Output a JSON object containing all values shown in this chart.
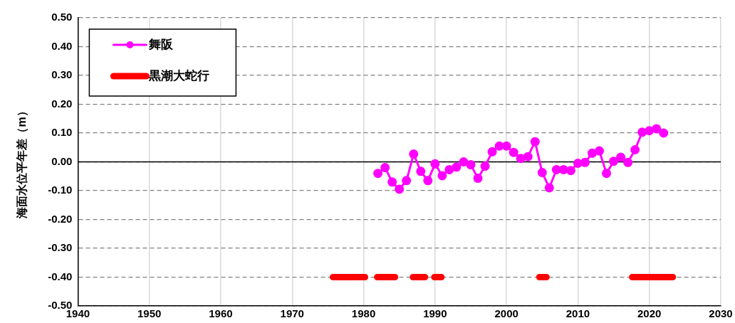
{
  "chart_data": {
    "type": "line",
    "ylabel": "海面水位平年差（m）",
    "xlim": [
      1940,
      2030
    ],
    "xticks": [
      1940,
      1950,
      1960,
      1970,
      1980,
      1990,
      2000,
      2010,
      2020,
      2030
    ],
    "ylim": [
      -0.5,
      0.5
    ],
    "yticks": [
      {
        "value": -0.5,
        "label": "-0.50"
      },
      {
        "value": -0.4,
        "label": "-0.40"
      },
      {
        "value": -0.3,
        "label": "-0.30"
      },
      {
        "value": -0.2,
        "label": "-0.20"
      },
      {
        "value": -0.1,
        "label": "-0.10"
      },
      {
        "value": 0,
        "label": "0.00"
      },
      {
        "value": 0.1,
        "label": "0.10"
      },
      {
        "value": 0.2,
        "label": "0.20"
      },
      {
        "value": 0.3,
        "label": "0.30"
      },
      {
        "value": 0.4,
        "label": "0.40"
      },
      {
        "value": 0.5,
        "label": "0.50"
      }
    ],
    "grid": true,
    "legend": "top left",
    "ref_lines": [
      {
        "axis": "y",
        "value": 0,
        "color": "#000000"
      }
    ],
    "series": [
      {
        "name": "舞阪",
        "type": "line",
        "color": "#ff00ff",
        "marker": "circle",
        "x": [
          1982,
          1983,
          1984,
          1985,
          1986,
          1987,
          1988,
          1989,
          1990,
          1991,
          1992,
          1993,
          1994,
          1995,
          1996,
          1997,
          1998,
          1999,
          2000,
          2001,
          2002,
          2003,
          2004,
          2005,
          2006,
          2007,
          2008,
          2009,
          2010,
          2011,
          2012,
          2013,
          2014,
          2015,
          2016,
          2017,
          2018,
          2019,
          2020,
          2021,
          2022
        ],
        "values": [
          -0.04,
          -0.02,
          -0.07,
          -0.095,
          -0.065,
          0.027,
          -0.033,
          -0.065,
          -0.007,
          -0.048,
          -0.027,
          -0.018,
          0.0,
          -0.01,
          -0.057,
          -0.015,
          0.035,
          0.055,
          0.055,
          0.033,
          0.012,
          0.018,
          0.07,
          -0.037,
          -0.09,
          -0.027,
          -0.027,
          -0.03,
          -0.005,
          -0.002,
          0.03,
          0.038,
          -0.04,
          0.002,
          0.016,
          -0.002,
          0.042,
          0.103,
          0.108,
          0.115,
          0.1
        ]
      },
      {
        "name": "黒潮大蛇行",
        "type": "line",
        "color": "#ff0000",
        "marker": "none",
        "x": [
          1975.7,
          1980.2,
          1981,
          1981.9,
          1984.4,
          1985,
          1986.9,
          1988.6,
          1989,
          1989.9,
          1990.9,
          1995,
          2004.6,
          2005.6,
          2010,
          2017.6,
          2023.3
        ],
        "values": [
          -0.4,
          -0.4,
          null,
          -0.4,
          -0.4,
          null,
          -0.4,
          -0.4,
          null,
          -0.4,
          -0.4,
          null,
          -0.4,
          -0.4,
          null,
          -0.4,
          -0.4
        ]
      }
    ]
  }
}
